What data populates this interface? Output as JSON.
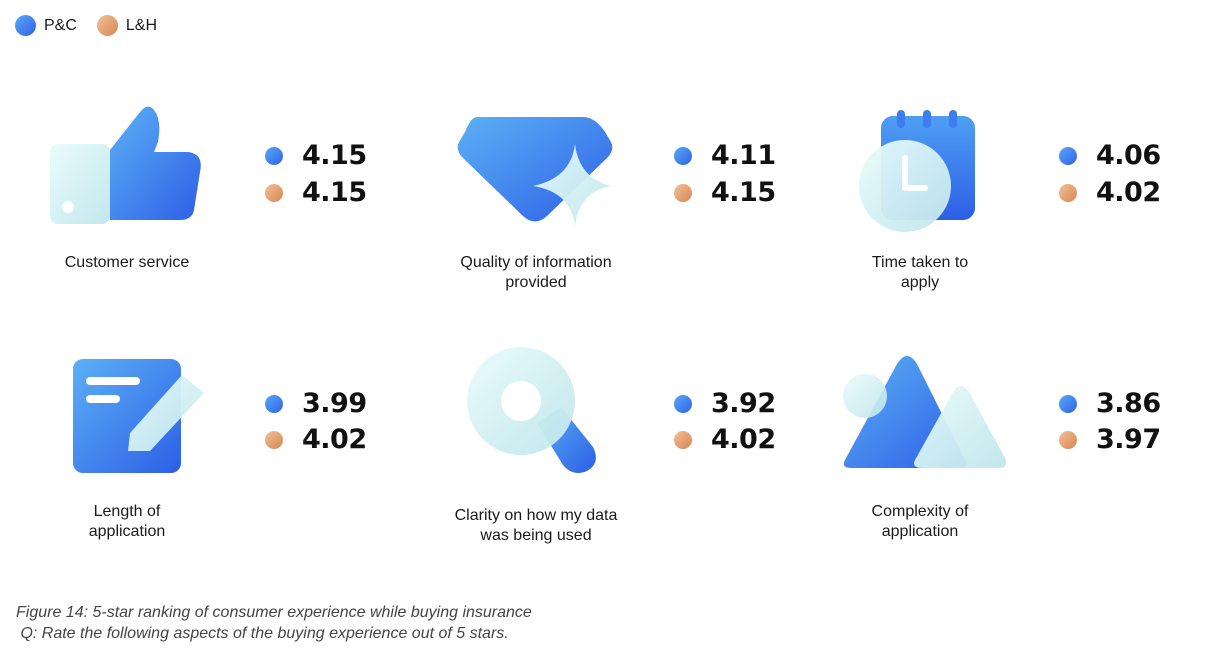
{
  "legend": {
    "pc": "P&C",
    "lh": "L&H"
  },
  "colors": {
    "pc": "#3b7bee",
    "lh": "#e3a373"
  },
  "chart_data": {
    "type": "table",
    "series": [
      {
        "name": "P&C",
        "values": [
          4.15,
          4.11,
          4.06,
          3.99,
          3.92,
          3.86
        ]
      },
      {
        "name": "L&H",
        "values": [
          4.15,
          4.15,
          4.02,
          4.02,
          4.02,
          3.97
        ]
      }
    ],
    "items": [
      {
        "label_lines": [
          "Customer service"
        ],
        "icon": "thumbs-up-icon",
        "pc": "4.15",
        "lh": "4.15"
      },
      {
        "label_lines": [
          "Quality of information",
          "provided"
        ],
        "icon": "diamond-sparkle-icon",
        "pc": "4.11",
        "lh": "4.15"
      },
      {
        "label_lines": [
          "Time taken to",
          "apply"
        ],
        "icon": "calendar-clock-icon",
        "pc": "4.06",
        "lh": "4.02"
      },
      {
        "label_lines": [
          "Length of",
          "application"
        ],
        "icon": "notepad-pencil-icon",
        "pc": "3.99",
        "lh": "4.02"
      },
      {
        "label_lines": [
          "Clarity on how my data",
          "was being used"
        ],
        "icon": "magnifier-icon",
        "pc": "3.92",
        "lh": "4.02"
      },
      {
        "label_lines": [
          "Complexity of",
          "application"
        ],
        "icon": "mountains-icon",
        "pc": "3.86",
        "lh": "3.97"
      }
    ]
  },
  "caption": {
    "line1": "Figure 14: 5-star ranking of consumer experience while buying insurance",
    "line2": " Q: Rate the following aspects of the buying experience out of 5 stars."
  }
}
